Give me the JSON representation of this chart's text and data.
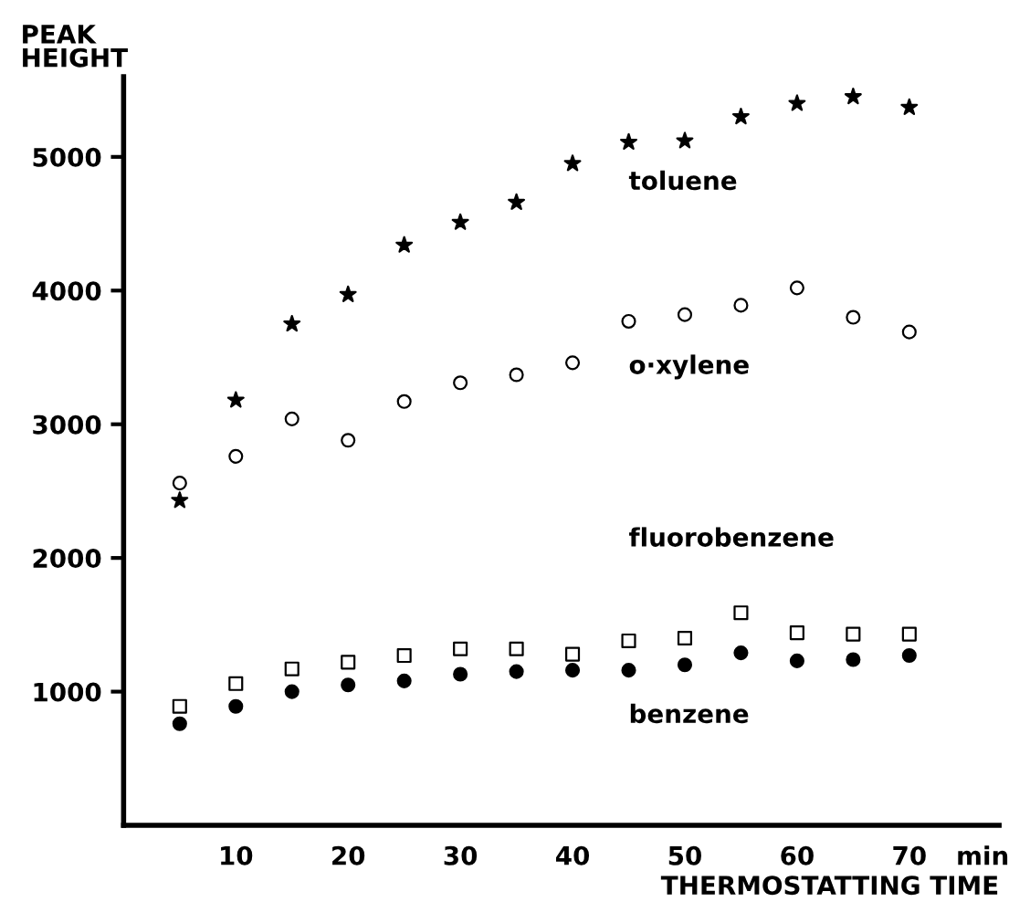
{
  "chart_data": {
    "type": "scatter",
    "xlabel": "THERMOSTATTING TIME",
    "ylabel": "PEAK\nHEIGHT",
    "x": [
      5,
      10,
      15,
      20,
      25,
      30,
      35,
      40,
      45,
      50,
      55,
      60,
      65,
      70
    ],
    "series": [
      {
        "name": "toluene",
        "color": "#000000",
        "marker": "star",
        "values": [
          2430,
          3180,
          3750,
          3970,
          4340,
          4510,
          4660,
          4950,
          5110,
          5120,
          5300,
          5400,
          5450,
          5370
        ]
      },
      {
        "name": "o·xylene",
        "color": "#000000",
        "marker": "circle",
        "values": [
          2560,
          2760,
          3040,
          2880,
          3170,
          3310,
          3370,
          3460,
          3770,
          3820,
          3890,
          4020,
          3800,
          3690
        ]
      },
      {
        "name": "fluorobenzene",
        "color": "#000000",
        "marker": "square",
        "values": [
          890,
          1060,
          1170,
          1220,
          1270,
          1320,
          1320,
          1280,
          1380,
          1400,
          1590,
          1440,
          1430,
          1430
        ]
      },
      {
        "name": "benzene",
        "color": "#000000",
        "marker": "circle",
        "values": [
          760,
          890,
          1000,
          1050,
          1080,
          1130,
          1150,
          1160,
          1160,
          1200,
          1290,
          1230,
          1240,
          1270
        ]
      }
    ],
    "annotations": [
      "min"
    ],
    "xlim": [
      0,
      78
    ],
    "ylim": [
      0,
      5600
    ],
    "xticks": [
      10,
      20,
      30,
      40,
      50,
      60,
      70
    ],
    "yticks": [
      1000,
      2000,
      3000,
      4000,
      5000
    ],
    "grid": false,
    "legend": false
  }
}
